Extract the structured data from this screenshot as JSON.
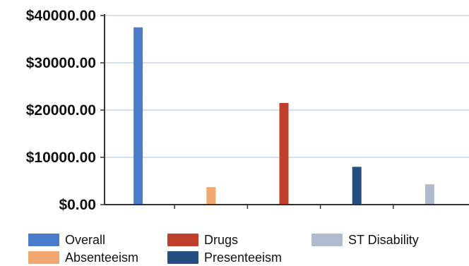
{
  "chart_data": {
    "type": "bar",
    "categories": [
      "Overall",
      "Absenteeism",
      "Drugs",
      "Presenteeism",
      "ST Disability"
    ],
    "values": [
      37500,
      3700,
      21500,
      8000,
      4300
    ],
    "colors": [
      "#4a7cc9",
      "#f0a870",
      "#bf3f2a",
      "#244f80",
      "#b0bccd"
    ],
    "yticks": [
      "$0.00",
      "$10000.00",
      "$20000.00",
      "$30000.00",
      "$40000.00"
    ],
    "ylim": [
      0,
      40000
    ],
    "title": "",
    "xlabel": "",
    "ylabel": "",
    "grid": true,
    "legend_position": "bottom"
  },
  "legend": {
    "items": [
      {
        "label": "Overall",
        "color": "#4a7cc9"
      },
      {
        "label": "Absenteeism",
        "color": "#f0a870"
      },
      {
        "label": "Drugs",
        "color": "#bf3f2a"
      },
      {
        "label": "Presenteeism",
        "color": "#244f80"
      },
      {
        "label": "ST Disability",
        "color": "#b0bccd"
      }
    ]
  }
}
